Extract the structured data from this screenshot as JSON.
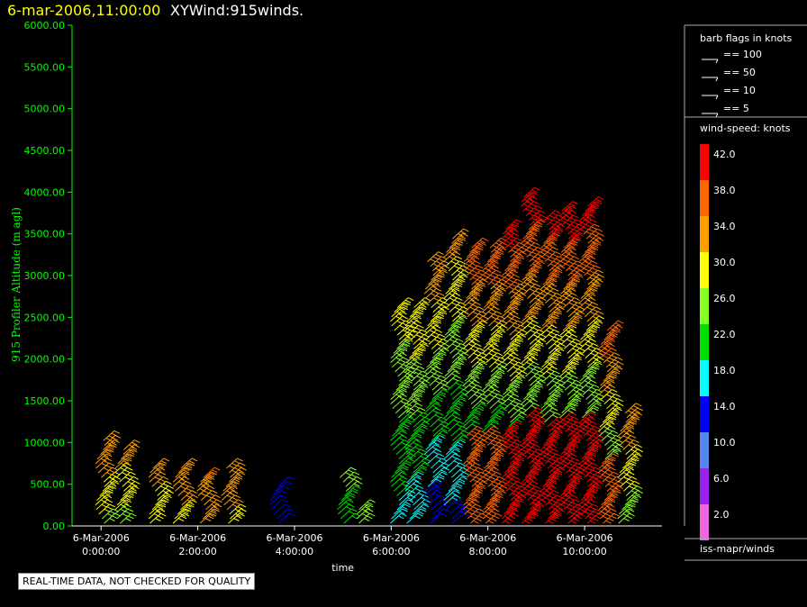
{
  "header": {
    "date_time": "6-mar-2006,11:00:00",
    "plot_title": "XYWind:915winds."
  },
  "footer": {
    "quality_note": "REAL-TIME DATA, NOT CHECKED FOR QUALITY"
  },
  "legend": {
    "barb_title": "barb flags in knots",
    "barb_entries": [
      "== 100",
      "== 50",
      "== 10",
      "== 5"
    ],
    "colorbar_title": "wind-speed: knots",
    "colorbar_stops": [
      {
        "label": "42.0",
        "color": "#ff0000"
      },
      {
        "label": "38.0",
        "color": "#ff6600"
      },
      {
        "label": "34.0",
        "color": "#ffa000"
      },
      {
        "label": "30.0",
        "color": "#ffff00"
      },
      {
        "label": "26.0",
        "color": "#88ff22"
      },
      {
        "label": "22.0",
        "color": "#00dd00"
      },
      {
        "label": "18.0",
        "color": "#00ffff"
      },
      {
        "label": "14.0",
        "color": "#0000ff"
      },
      {
        "label": "10.0",
        "color": "#5588ee"
      },
      {
        "label": "6.0",
        "color": "#9922ee"
      },
      {
        "label": "2.0",
        "color": "#ee66dd"
      }
    ],
    "source": "iss-mapr/winds"
  },
  "chart_data": {
    "type": "scatter",
    "ylabel": "915 Profiler Altitude (m agl)",
    "xlabel": "time",
    "ylim": [
      0,
      6000
    ],
    "xlim_hours": [
      -0.6,
      11.6
    ],
    "y_ticks": [
      "0.00",
      "500.00",
      "1000.00",
      "1500.00",
      "2000.00",
      "2500.00",
      "3000.00",
      "3500.00",
      "4000.00",
      "4500.00",
      "5000.00",
      "5500.00",
      "6000.00"
    ],
    "x_ticks": [
      {
        "date": "6-Mar-2006",
        "time": "0:00:00"
      },
      {
        "date": "6-Mar-2006",
        "time": "2:00:00"
      },
      {
        "date": "6-Mar-2006",
        "time": "4:00:00"
      },
      {
        "date": "6-Mar-2006",
        "time": "6:00:00"
      },
      {
        "date": "6-Mar-2006",
        "time": "8:00:00"
      },
      {
        "date": "6-Mar-2006",
        "time": "10:00:00"
      }
    ],
    "axis_color": "#00ff00",
    "profiles": [
      {
        "hour": 0.2,
        "top": 1150,
        "speed_low": 26,
        "speed_high": 36
      },
      {
        "hour": 0.6,
        "top": 1050,
        "speed_low": 26,
        "speed_high": 34
      },
      {
        "hour": 1.3,
        "top": 850,
        "speed_low": 30,
        "speed_high": 33
      },
      {
        "hour": 1.8,
        "top": 850,
        "speed_low": 30,
        "speed_high": 35
      },
      {
        "hour": 2.3,
        "top": 700,
        "speed_low": 33,
        "speed_high": 36
      },
      {
        "hour": 2.8,
        "top": 850,
        "speed_low": 30,
        "speed_high": 36
      },
      {
        "hour": 3.8,
        "top": 600,
        "speed_low": 14,
        "speed_high": 14
      },
      {
        "hour": 5.2,
        "top": 750,
        "speed_low": 20,
        "speed_high": 26
      },
      {
        "hour": 5.6,
        "top": 350,
        "speed_low": 26,
        "speed_high": 26
      },
      {
        "hour": 6.3,
        "top": 2750,
        "speed_low": 18,
        "speed_high": 30
      },
      {
        "hour": 6.6,
        "top": 2750,
        "speed_low": 16,
        "speed_high": 32
      },
      {
        "hour": 7.0,
        "top": 3300,
        "speed_low": 12,
        "speed_high": 36
      },
      {
        "hour": 7.4,
        "top": 3600,
        "speed_low": 14,
        "speed_high": 34
      },
      {
        "hour": 7.8,
        "top": 3500,
        "speed_low": 12,
        "speed_high": 40
      },
      {
        "hour": 8.2,
        "top": 3500,
        "speed_low": 12,
        "speed_high": 40
      },
      {
        "hour": 8.6,
        "top": 3700,
        "speed_low": 14,
        "speed_high": 42
      },
      {
        "hour": 9.0,
        "top": 4100,
        "speed_low": 14,
        "speed_high": 43
      },
      {
        "hour": 9.4,
        "top": 3800,
        "speed_low": 14,
        "speed_high": 42
      },
      {
        "hour": 9.8,
        "top": 3900,
        "speed_low": 14,
        "speed_high": 43
      },
      {
        "hour": 10.2,
        "top": 3950,
        "speed_low": 14,
        "speed_high": 42
      },
      {
        "hour": 10.6,
        "top": 2500,
        "speed_low": 16,
        "speed_high": 40
      },
      {
        "hour": 11.0,
        "top": 1500,
        "speed_low": 24,
        "speed_high": 36
      }
    ]
  }
}
